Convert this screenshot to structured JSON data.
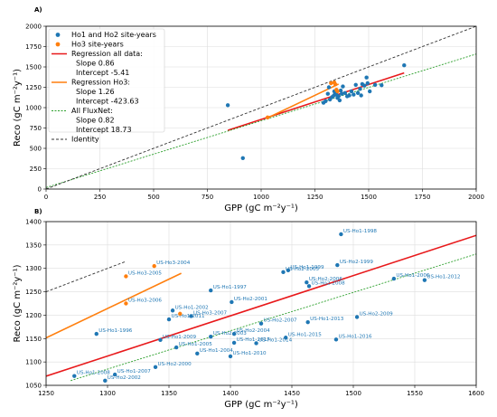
{
  "chart_data": [
    {
      "panel_label": "A)",
      "type": "scatter",
      "xlabel": "GPP (gC m⁻²y⁻¹)",
      "ylabel": "Reco (gC m⁻²y⁻¹)",
      "xlim": [
        0,
        2000
      ],
      "ylim": [
        0,
        2000
      ],
      "xticks": [
        0,
        250,
        500,
        750,
        1000,
        1250,
        1500,
        1750,
        2000
      ],
      "yticks": [
        0,
        250,
        500,
        750,
        1000,
        1250,
        1500,
        1750,
        2000
      ],
      "grid": true,
      "legend_position": "top-left",
      "series": [
        {
          "name": "Ho1 and Ho2 site-years",
          "kind": "points",
          "color": "#1f77b4",
          "points": [
            [
              845,
              1030
            ],
            [
              915,
              380
            ],
            [
              1290,
              1060
            ],
            [
              1300,
              1080
            ],
            [
              1310,
              1170
            ],
            [
              1315,
              1250
            ],
            [
              1320,
              1100
            ],
            [
              1330,
              1130
            ],
            [
              1338,
              1150
            ],
            [
              1340,
              1200
            ],
            [
              1345,
              1180
            ],
            [
              1350,
              1160
            ],
            [
              1355,
              1120
            ],
            [
              1360,
              1140
            ],
            [
              1365,
              1090
            ],
            [
              1370,
              1210
            ],
            [
              1375,
              1170
            ],
            [
              1380,
              1260
            ],
            [
              1390,
              1180
            ],
            [
              1400,
              1140
            ],
            [
              1410,
              1150
            ],
            [
              1420,
              1200
            ],
            [
              1430,
              1160
            ],
            [
              1440,
              1280
            ],
            [
              1450,
              1180
            ],
            [
              1460,
              1230
            ],
            [
              1465,
              1150
            ],
            [
              1470,
              1290
            ],
            [
              1480,
              1270
            ],
            [
              1490,
              1370
            ],
            [
              1495,
              1300
            ],
            [
              1505,
              1200
            ],
            [
              1530,
              1280
            ],
            [
              1560,
              1275
            ],
            [
              1665,
              1520
            ]
          ]
        },
        {
          "name": "Ho3 site-years",
          "kind": "points",
          "color": "#ff7f0e",
          "points": [
            [
              1030,
              880
            ],
            [
              1325,
              1300
            ],
            [
              1340,
              1310
            ],
            [
              1345,
              1285
            ],
            [
              1350,
              1220
            ],
            [
              1355,
              1200
            ]
          ]
        },
        {
          "name": "Regression all data:",
          "kind": "line",
          "color": "#e8191b",
          "dash": "solid",
          "x": [
            845,
            1665
          ],
          "y": [
            721.3,
            1426.5
          ]
        },
        {
          "name": "Regression Ho3:",
          "kind": "line",
          "color": "#ff7f0e",
          "dash": "solid",
          "x": [
            1030,
            1360
          ],
          "y": [
            874.2,
            1289.6
          ]
        },
        {
          "name": "All FluxNet:",
          "kind": "line",
          "color": "#2ca02c",
          "dash": "dotted",
          "x": [
            0,
            2000
          ],
          "y": [
            18.73,
            1658.7
          ]
        },
        {
          "name": "Identity",
          "kind": "line",
          "color": "#333333",
          "dash": "dashed",
          "x": [
            0,
            2000
          ],
          "y": [
            0,
            2000
          ]
        }
      ],
      "legend": [
        {
          "type": "marker",
          "color": "#1f77b4",
          "label": "Ho1 and Ho2 site-years"
        },
        {
          "type": "marker",
          "color": "#ff7f0e",
          "label": "Ho3 site-years"
        },
        {
          "type": "line",
          "color": "#e8191b",
          "dash": "solid",
          "label": "Regression all data:",
          "sublines": [
            "Slope 0.86",
            "Intercept -5.41"
          ]
        },
        {
          "type": "line",
          "color": "#ff7f0e",
          "dash": "solid",
          "label": "Regression Ho3:",
          "sublines": [
            "Slope 1.26",
            "Intercept -423.63"
          ]
        },
        {
          "type": "line",
          "color": "#2ca02c",
          "dash": "dotted",
          "label": "All FluxNet:",
          "sublines": [
            "Slope 0.82",
            "Intercept 18.73"
          ]
        },
        {
          "type": "line",
          "color": "#333333",
          "dash": "dashed",
          "label": "Identity",
          "sublines": []
        }
      ]
    },
    {
      "panel_label": "B)",
      "type": "scatter",
      "xlabel": "GPP (gC m⁻²y⁻¹)",
      "ylabel": "Reco (gC m⁻²y⁻¹)",
      "xlim": [
        1250,
        1600
      ],
      "ylim": [
        1050,
        1400
      ],
      "xticks": [
        1250,
        1300,
        1350,
        1400,
        1450,
        1500,
        1550,
        1600
      ],
      "yticks": [
        1050,
        1100,
        1150,
        1200,
        1250,
        1300,
        1350,
        1400
      ],
      "grid": true,
      "series": [
        {
          "name": "Ho1 and Ho2 site-years",
          "kind": "points",
          "color": "#1f77b4",
          "points": [
            {
              "x": 1490,
              "y": 1373,
              "label": "US-Ho1-1998"
            },
            {
              "x": 1487,
              "y": 1307,
              "label": "US-Ho2-1999"
            },
            {
              "x": 1447,
              "y": 1296,
              "label": "US-Ho1-1999"
            },
            {
              "x": 1443,
              "y": 1292,
              "label": "US-Ho2-2005"
            },
            {
              "x": 1462,
              "y": 1270,
              "label": "US-Ho2-2006"
            },
            {
              "x": 1464,
              "y": 1262,
              "label": "US-Ho2-2008"
            },
            {
              "x": 1533,
              "y": 1278,
              "label": "US-Ho1-2006"
            },
            {
              "x": 1558,
              "y": 1275,
              "label": "US-Ho1-2012"
            },
            {
              "x": 1384,
              "y": 1253,
              "label": "US-Ho1-1997"
            },
            {
              "x": 1401,
              "y": 1228,
              "label": "US-Ho2-2001"
            },
            {
              "x": 1353,
              "y": 1210,
              "label": "US-Ho1-2002"
            },
            {
              "x": 1368,
              "y": 1198,
              "label": "US-Ho3-2007"
            },
            {
              "x": 1350,
              "y": 1191,
              "label": "US-Ho1-2011"
            },
            {
              "x": 1503,
              "y": 1196,
              "label": "US-Ho2-2009"
            },
            {
              "x": 1425,
              "y": 1182,
              "label": "US-Ho2-2007"
            },
            {
              "x": 1463,
              "y": 1185,
              "label": "US-Ho1-2013"
            },
            {
              "x": 1291,
              "y": 1160,
              "label": "US-Ho1-1996"
            },
            {
              "x": 1403,
              "y": 1160,
              "label": "US-Ho2-2004"
            },
            {
              "x": 1384,
              "y": 1154,
              "label": "US-Ho2-2003"
            },
            {
              "x": 1343,
              "y": 1147,
              "label": "US-Ho1-2009"
            },
            {
              "x": 1445,
              "y": 1152,
              "label": "US-Ho1-2015"
            },
            {
              "x": 1486,
              "y": 1148,
              "label": "US-Ho1-2016"
            },
            {
              "x": 1403,
              "y": 1141,
              "label": "US-Ho1-2017"
            },
            {
              "x": 1421,
              "y": 1140,
              "label": "US-Ho1-2014"
            },
            {
              "x": 1356,
              "y": 1131,
              "label": "US-Ho1-2005"
            },
            {
              "x": 1373,
              "y": 1118,
              "label": "US-Ho1-2004"
            },
            {
              "x": 1400,
              "y": 1112,
              "label": "US-Ho1-2010"
            },
            {
              "x": 1339,
              "y": 1089,
              "label": "US-Ho2-2000"
            },
            {
              "x": 1306,
              "y": 1073,
              "label": "US-Ho1-2007"
            },
            {
              "x": 1273,
              "y": 1070,
              "label": "US-Ho1-2008"
            },
            {
              "x": 1298,
              "y": 1060,
              "label": "US-Ho2-2002"
            }
          ]
        },
        {
          "name": "Ho3 site-years",
          "kind": "points",
          "color": "#ff7f0e",
          "points": [
            {
              "x": 1338,
              "y": 1305,
              "label": "US-Ho3-2004"
            },
            {
              "x": 1315,
              "y": 1283,
              "label": "US-Ho3-2005"
            },
            {
              "x": 1315,
              "y": 1225,
              "label": "US-Ho3-2006"
            },
            {
              "x": 1359,
              "y": 1203,
              "label": ""
            }
          ]
        },
        {
          "name": "Regression all data:",
          "kind": "line",
          "color": "#e8191b",
          "dash": "solid",
          "x": [
            1250,
            1600
          ],
          "y": [
            1069.6,
            1370.6
          ]
        },
        {
          "name": "Regression Ho3:",
          "kind": "line",
          "color": "#ff7f0e",
          "dash": "solid",
          "x": [
            1250,
            1360
          ],
          "y": [
            1151.4,
            1289.6
          ]
        },
        {
          "name": "All FluxNet:",
          "kind": "line",
          "color": "#2ca02c",
          "dash": "dotted",
          "x": [
            1270,
            1600
          ],
          "y": [
            1060.1,
            1330.7
          ]
        },
        {
          "name": "Identity",
          "kind": "line",
          "color": "#333333",
          "dash": "dashed",
          "x": [
            1250,
            1315
          ],
          "y": [
            1250,
            1315
          ]
        }
      ]
    }
  ]
}
